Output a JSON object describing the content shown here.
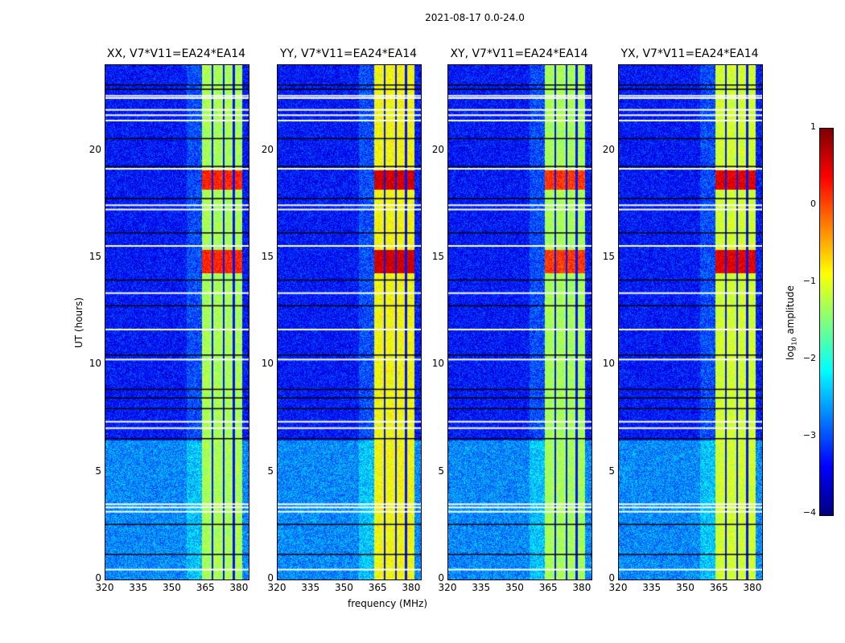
{
  "chart_data": {
    "type": "heatmap",
    "title": "2021-08-17 0.0-24.0",
    "xlabel": "frequency (MHz)",
    "ylabel": "UT (hours)",
    "xlim": [
      320,
      384
    ],
    "ylim": [
      0,
      24
    ],
    "xticks": [
      "320",
      "335",
      "350",
      "365",
      "380"
    ],
    "yticks": [
      "0",
      "5",
      "10",
      "15",
      "20"
    ],
    "panels": [
      {
        "title": "XX, V7*V11=EA24*EA14",
        "band_level": -1.3,
        "strong_level": 0.2
      },
      {
        "title": "YY, V7*V11=EA24*EA14",
        "band_level": -0.9,
        "strong_level": 0.6
      },
      {
        "title": "XY, V7*V11=EA24*EA14",
        "band_level": -1.3,
        "strong_level": 0.1
      },
      {
        "title": "YX, V7*V11=EA24*EA14",
        "band_level": -1.1,
        "strong_level": 0.5
      }
    ],
    "band_mhz": [
      363,
      381
    ],
    "band_gaps_mhz": [
      367.7,
      372.6,
      377.2
    ],
    "strong_hours": [
      [
        14.3,
        15.4
      ],
      [
        18.2,
        19.1
      ]
    ],
    "flagged_hours_white": [
      0.5,
      3.2,
      3.4,
      3.55,
      7.1,
      7.4,
      10.3,
      11.7,
      13.4,
      15.6,
      17.3,
      17.5,
      19.2,
      21.45,
      21.7,
      21.95,
      22.5,
      22.6
    ],
    "gap_hours_black": [
      1.2,
      2.6,
      6.6,
      8.0,
      8.5,
      8.9,
      10.5,
      12.8,
      14.0,
      16.2,
      17.8,
      19.3,
      20.6,
      22.9,
      23.1
    ],
    "colorbar": {
      "label_prefix": "log",
      "label_sub": "10",
      "label_suffix": " amplitude",
      "ticks": [
        "1",
        "0",
        "−1",
        "−2",
        "−3",
        "−4"
      ],
      "range": [
        -4,
        1
      ],
      "colormap": "jet"
    }
  }
}
